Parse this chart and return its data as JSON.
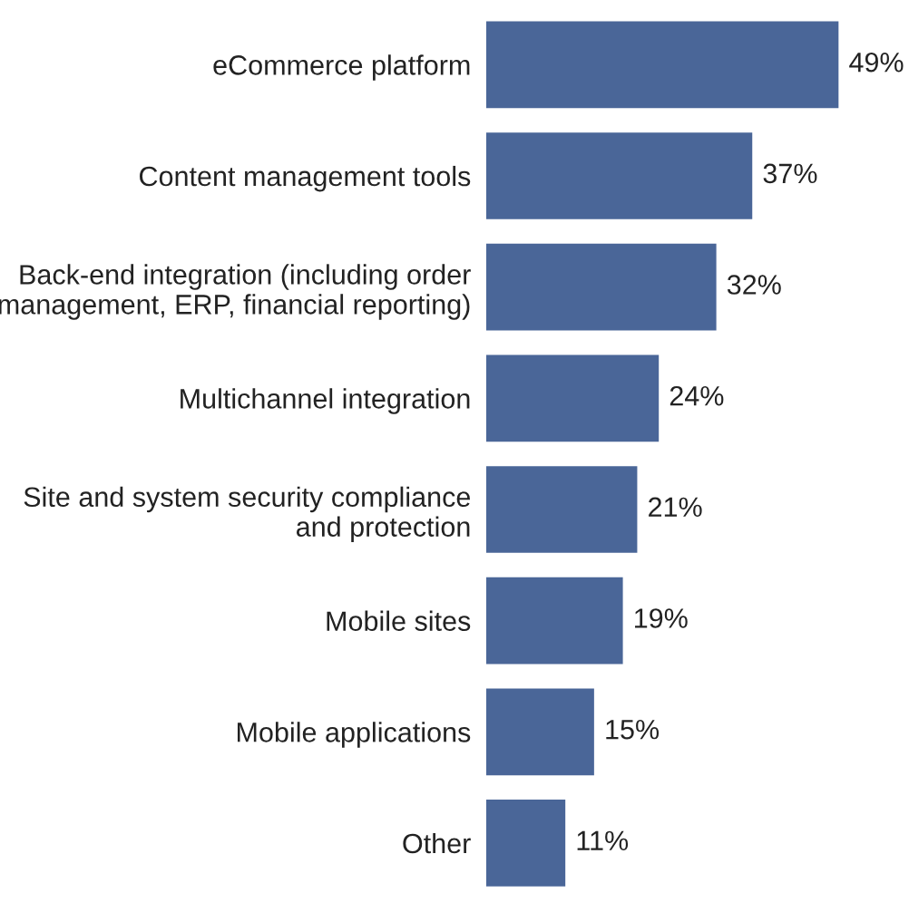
{
  "chart_data": {
    "type": "bar",
    "orientation": "horizontal",
    "categories": [
      "eCommerce platform",
      "Content management tools",
      "Back-end integration (including order\nmanagement, ERP, financial reporting)",
      "Multichannel integration",
      "Site and system security compliance\nand protection",
      "Mobile sites",
      "Mobile applications",
      "Other"
    ],
    "values": [
      49,
      37,
      32,
      24,
      21,
      19,
      15,
      11
    ],
    "value_labels": [
      "49%",
      "37%",
      "32%",
      "24%",
      "21%",
      "19%",
      "15%",
      "11%"
    ],
    "color": "#4a6698",
    "grid": false,
    "legend": false
  }
}
